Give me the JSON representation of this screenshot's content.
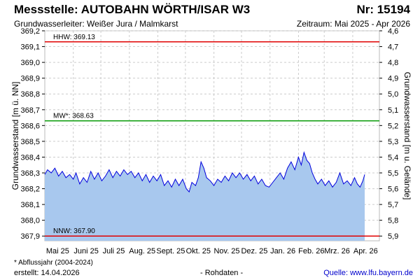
{
  "header": {
    "title": "Messstelle: AUTOBAHN WÖRTH/ISAR W3",
    "number": "Nr: 15194",
    "aquifer": "Grundwasserleiter:  Weißer Jura / Malmkarst",
    "period": "Zeitraum: Mai 2025 - Apr 2026"
  },
  "footer": {
    "note": "* Abflussjahr (2004-2024)",
    "created": "erstellt:  14.04.2026",
    "raw_data": "- Rohdaten -",
    "source": "Quelle: www.lfu.bayern.de"
  },
  "colors": {
    "hhw": "#e00000",
    "mw": "#009900",
    "nnw": "#e00000",
    "line": "#0000dd",
    "fill": "#a8c8ee"
  },
  "chart_data": {
    "type": "area",
    "ylabel": "Grundwasserstand [m ü. NN]",
    "ylabel_right": "Grundwasserstand [m u. Gelände]",
    "ylim": [
      367.87,
      369.2
    ],
    "y_ticks": [
      "369,2",
      "369,1",
      "369,0",
      "368,9",
      "368,8",
      "368,7",
      "368,6",
      "368,5",
      "368,4",
      "368,3",
      "368,2",
      "368,1",
      "368,0",
      "367,9"
    ],
    "y2_ticks": [
      "4,6",
      "4,7",
      "4,8",
      "4,9",
      "5,0",
      "5,1",
      "5,2",
      "5,3",
      "5,4",
      "5,5",
      "5,6",
      "5,7",
      "5,8",
      "5,9"
    ],
    "x_ticks": [
      "Mai 25",
      "Juni 25",
      "Juli 25",
      "Aug. 25",
      "Sept. 25",
      "Okt. 25",
      "Nov. 25",
      "Dez. 25",
      "Jan. 26",
      "Feb. 26",
      "Mrz. 26",
      "Apr. 26"
    ],
    "grid": true,
    "reference_lines": [
      {
        "label": "HHW: 369.13",
        "value": 369.13
      },
      {
        "label": "MW*: 368.63",
        "value": 368.63
      },
      {
        "label": "NNW: 367.90",
        "value": 367.9
      }
    ],
    "x_start": "2025-05-01",
    "x_end": "2026-04-30",
    "series": [
      {
        "points": [
          [
            "2025-05-01",
            368.29
          ],
          [
            "2025-05-04",
            368.32
          ],
          [
            "2025-05-08",
            368.3
          ],
          [
            "2025-05-12",
            368.33
          ],
          [
            "2025-05-16",
            368.28
          ],
          [
            "2025-05-20",
            368.31
          ],
          [
            "2025-05-24",
            368.27
          ],
          [
            "2025-05-28",
            368.29
          ],
          [
            "2025-06-01",
            368.26
          ],
          [
            "2025-06-04",
            368.3
          ],
          [
            "2025-06-08",
            368.23
          ],
          [
            "2025-06-12",
            368.27
          ],
          [
            "2025-06-16",
            368.24
          ],
          [
            "2025-06-20",
            368.31
          ],
          [
            "2025-06-24",
            368.26
          ],
          [
            "2025-06-28",
            368.3
          ],
          [
            "2025-07-02",
            368.25
          ],
          [
            "2025-07-06",
            368.28
          ],
          [
            "2025-07-10",
            368.32
          ],
          [
            "2025-07-14",
            368.27
          ],
          [
            "2025-07-18",
            368.31
          ],
          [
            "2025-07-22",
            368.28
          ],
          [
            "2025-07-26",
            368.32
          ],
          [
            "2025-07-30",
            368.29
          ],
          [
            "2025-08-03",
            368.31
          ],
          [
            "2025-08-07",
            368.27
          ],
          [
            "2025-08-11",
            368.3
          ],
          [
            "2025-08-15",
            368.25
          ],
          [
            "2025-08-19",
            368.29
          ],
          [
            "2025-08-23",
            368.24
          ],
          [
            "2025-08-27",
            368.28
          ],
          [
            "2025-08-31",
            368.25
          ],
          [
            "2025-09-04",
            368.29
          ],
          [
            "2025-09-08",
            368.22
          ],
          [
            "2025-09-12",
            368.25
          ],
          [
            "2025-09-16",
            368.21
          ],
          [
            "2025-09-20",
            368.26
          ],
          [
            "2025-09-24",
            368.22
          ],
          [
            "2025-09-28",
            368.26
          ],
          [
            "2025-10-02",
            368.2
          ],
          [
            "2025-10-05",
            368.18
          ],
          [
            "2025-10-08",
            368.24
          ],
          [
            "2025-10-12",
            368.22
          ],
          [
            "2025-10-15",
            368.27
          ],
          [
            "2025-10-18",
            368.37
          ],
          [
            "2025-10-21",
            368.33
          ],
          [
            "2025-10-24",
            368.27
          ],
          [
            "2025-10-28",
            368.25
          ],
          [
            "2025-11-01",
            368.22
          ],
          [
            "2025-11-05",
            368.26
          ],
          [
            "2025-11-09",
            368.24
          ],
          [
            "2025-11-13",
            368.28
          ],
          [
            "2025-11-17",
            368.25
          ],
          [
            "2025-11-21",
            368.3
          ],
          [
            "2025-11-25",
            368.27
          ],
          [
            "2025-11-29",
            368.3
          ],
          [
            "2025-12-03",
            368.26
          ],
          [
            "2025-12-07",
            368.29
          ],
          [
            "2025-12-11",
            368.25
          ],
          [
            "2025-12-15",
            368.28
          ],
          [
            "2025-12-19",
            368.23
          ],
          [
            "2025-12-23",
            368.26
          ],
          [
            "2025-12-27",
            368.22
          ],
          [
            "2025-12-31",
            368.21
          ],
          [
            "2026-01-04",
            368.24
          ],
          [
            "2026-01-08",
            368.27
          ],
          [
            "2026-01-12",
            368.3
          ],
          [
            "2026-01-16",
            368.26
          ],
          [
            "2026-01-20",
            368.33
          ],
          [
            "2026-01-24",
            368.37
          ],
          [
            "2026-01-28",
            368.32
          ],
          [
            "2026-02-01",
            368.4
          ],
          [
            "2026-02-04",
            368.35
          ],
          [
            "2026-02-07",
            368.43
          ],
          [
            "2026-02-10",
            368.38
          ],
          [
            "2026-02-13",
            368.36
          ],
          [
            "2026-02-16",
            368.3
          ],
          [
            "2026-02-19",
            368.26
          ],
          [
            "2026-02-22",
            368.23
          ],
          [
            "2026-02-26",
            368.26
          ],
          [
            "2026-03-02",
            368.22
          ],
          [
            "2026-03-06",
            368.25
          ],
          [
            "2026-03-10",
            368.21
          ],
          [
            "2026-03-14",
            368.24
          ],
          [
            "2026-03-18",
            368.3
          ],
          [
            "2026-03-22",
            368.23
          ],
          [
            "2026-03-26",
            368.25
          ],
          [
            "2026-03-30",
            368.22
          ],
          [
            "2026-04-03",
            368.27
          ],
          [
            "2026-04-06",
            368.23
          ],
          [
            "2026-04-09",
            368.21
          ],
          [
            "2026-04-12",
            368.25
          ],
          [
            "2026-04-14",
            368.29
          ]
        ]
      }
    ]
  }
}
